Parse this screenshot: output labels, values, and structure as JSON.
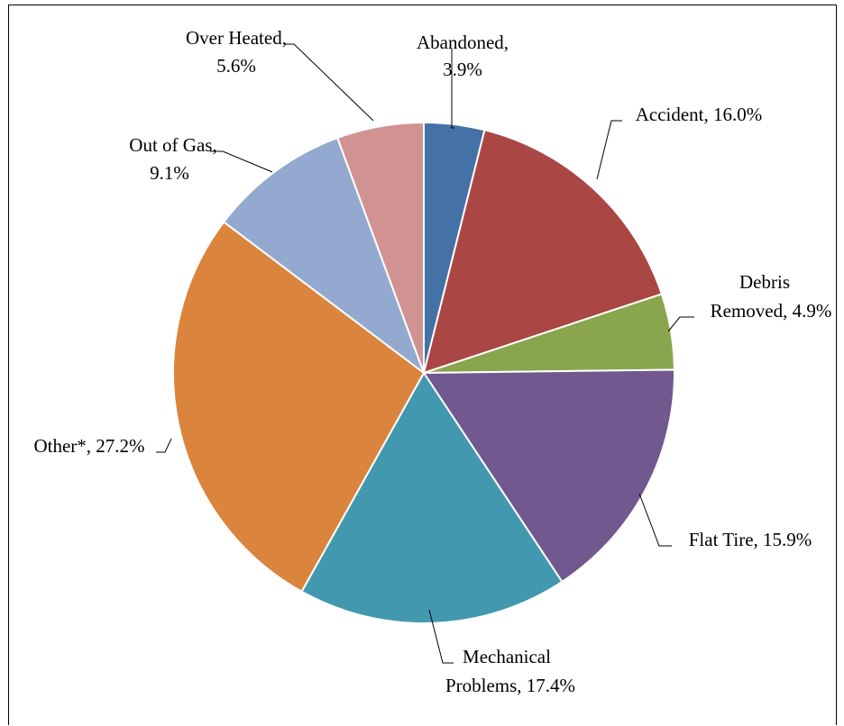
{
  "chart_data": {
    "type": "pie",
    "title": "",
    "slices": [
      {
        "name": "Abandoned",
        "value": 3.9,
        "label_lines": [
          "Abandoned,",
          "3.9%"
        ],
        "color": "#4471A7"
      },
      {
        "name": "Accident",
        "value": 16.0,
        "label_lines": [
          "Accident,  16.0%"
        ],
        "color": "#AA4644"
      },
      {
        "name": "Debris Removed",
        "value": 4.9,
        "label_lines": [
          "Debris",
          "Removed, 4.9%"
        ],
        "color": "#89A64E"
      },
      {
        "name": "Flat Tire",
        "value": 15.9,
        "label_lines": [
          "Flat Tire, 15.9%"
        ],
        "color": "#71588F"
      },
      {
        "name": "Mechanical Problems",
        "value": 17.4,
        "label_lines": [
          "Mechanical",
          "Problems, 17.4%"
        ],
        "color": "#4299AF"
      },
      {
        "name": "Other*",
        "value": 27.2,
        "label_lines": [
          "Other*, 27.2%"
        ],
        "color": "#DB843D"
      },
      {
        "name": "Out of Gas",
        "value": 9.1,
        "label_lines": [
          "Out of Gas,",
          "9.1%"
        ],
        "color": "#93A9CF"
      },
      {
        "name": "Over Heated",
        "value": 5.6,
        "label_lines": [
          "Over Heated,",
          "5.6%"
        ],
        "color": "#D09391"
      }
    ],
    "start_angle_deg": 0,
    "direction": "clockwise",
    "legend": "none",
    "slice_border_color": "#ffffff"
  }
}
